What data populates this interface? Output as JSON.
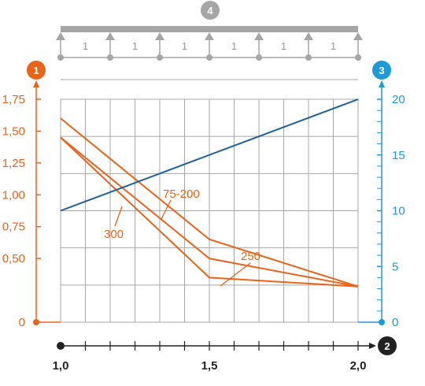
{
  "badges": {
    "left_axis": "1",
    "x_axis": "2",
    "right_axis": "3",
    "support_diagram": "4"
  },
  "support_diagram": {
    "span_labels": [
      "1",
      "1",
      "1",
      "1",
      "1",
      "1"
    ]
  },
  "colors": {
    "left_axis": "#e8641b",
    "right_axis": "#1e9ad6",
    "x_axis": "#222222",
    "support": "#a6a6a6",
    "grid": "#a8a8a8",
    "series_orange": "#e8641b",
    "series_blue": "#1f5f99"
  },
  "chart_data": {
    "type": "line",
    "x_ticks": [
      "1,0",
      "1,5",
      "2,0"
    ],
    "xlim": [
      1.0,
      2.0
    ],
    "y_left_ticks": [
      "0",
      "0,50",
      "0,75",
      "1,00",
      "1,25",
      "1,50",
      "1,75"
    ],
    "ylim_left": [
      0,
      1.75
    ],
    "y_right_ticks": [
      "0",
      "5",
      "10",
      "15",
      "20"
    ],
    "ylim_right": [
      0,
      20
    ],
    "series": [
      {
        "name": "75-200",
        "axis": "left",
        "x": [
          1.0,
          1.5,
          2.0
        ],
        "y": [
          1.6,
          0.65,
          0.28
        ]
      },
      {
        "name": "250",
        "axis": "left",
        "x": [
          1.0,
          1.5,
          2.0
        ],
        "y": [
          1.45,
          0.5,
          0.28
        ]
      },
      {
        "name": "300",
        "axis": "left",
        "x": [
          1.0,
          1.5,
          2.0
        ],
        "y": [
          1.45,
          0.35,
          0.28
        ]
      },
      {
        "axis": "right",
        "x": [
          1.0,
          2.0
        ],
        "y": [
          10,
          20
        ]
      }
    ]
  }
}
